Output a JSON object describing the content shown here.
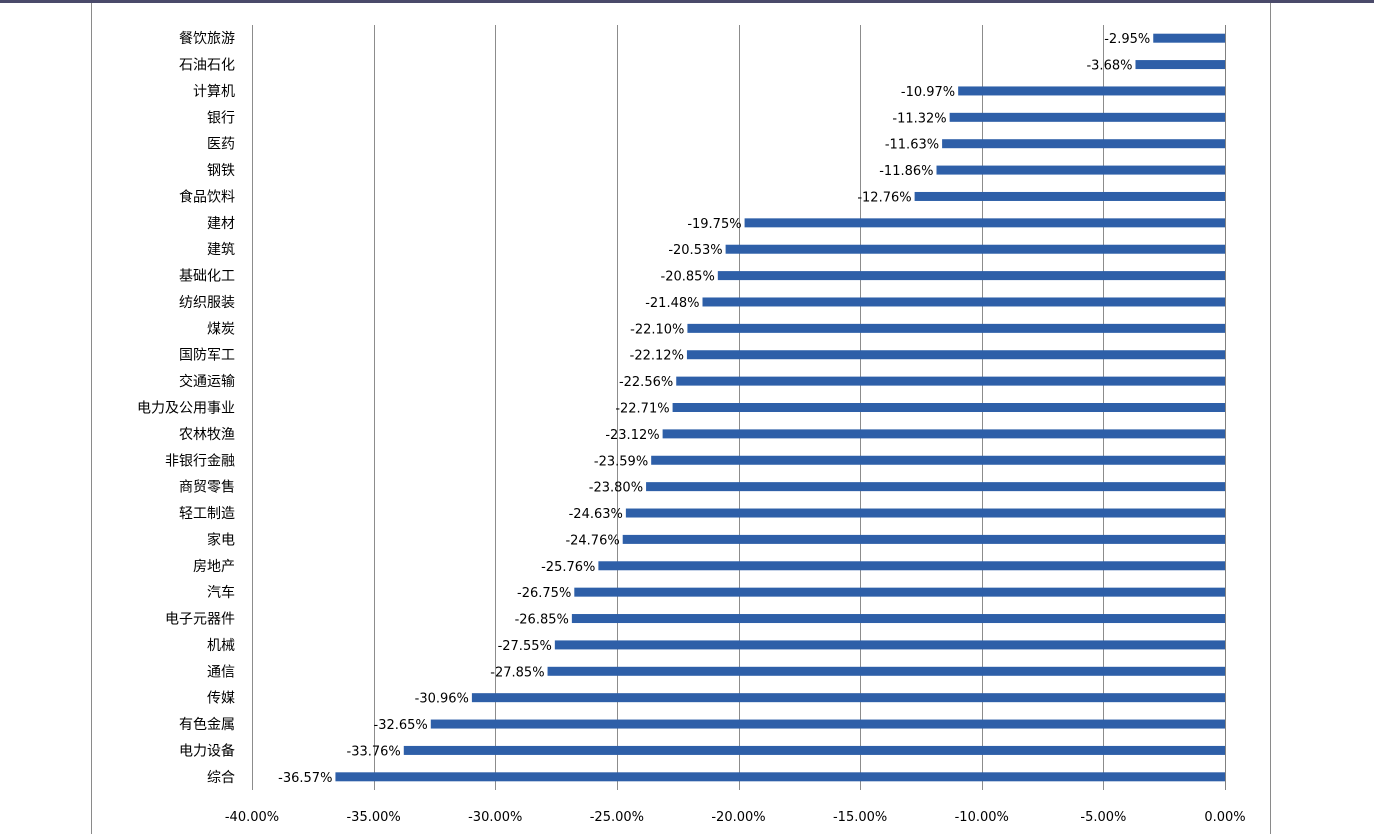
{
  "chart_data": {
    "type": "bar",
    "orientation": "horizontal",
    "title": "",
    "xlabel": "",
    "ylabel": "",
    "xlim": [
      -40,
      0
    ],
    "grid": "vertical",
    "legend": "none",
    "bar_color": "#2E5FA8",
    "categories": [
      "餐饮旅游",
      "石油石化",
      "计算机",
      "银行",
      "医药",
      "钢铁",
      "食品饮料",
      "建材",
      "建筑",
      "基础化工",
      "纺织服装",
      "煤炭",
      "国防军工",
      "交通运输",
      "电力及公用事业",
      "农林牧渔",
      "非银行金融",
      "商贸零售",
      "轻工制造",
      "家电",
      "房地产",
      "汽车",
      "电子元器件",
      "机械",
      "通信",
      "传媒",
      "有色金属",
      "电力设备",
      "综合"
    ],
    "values": [
      -2.95,
      -3.68,
      -10.97,
      -11.32,
      -11.63,
      -11.86,
      -12.76,
      -19.75,
      -20.53,
      -20.85,
      -21.48,
      -22.1,
      -22.12,
      -22.56,
      -22.71,
      -23.12,
      -23.59,
      -23.8,
      -24.63,
      -24.76,
      -25.76,
      -26.75,
      -26.85,
      -27.55,
      -27.85,
      -30.96,
      -32.65,
      -33.76,
      -36.57
    ],
    "value_labels": [
      "-2.95%",
      "-3.68%",
      "-10.97%",
      "-11.32%",
      "-11.63%",
      "-11.86%",
      "-12.76%",
      "-19.75%",
      "-20.53%",
      "-20.85%",
      "-21.48%",
      "-22.10%",
      "-22.12%",
      "-22.56%",
      "-22.71%",
      "-23.12%",
      "-23.59%",
      "-23.80%",
      "-24.63%",
      "-24.76%",
      "-25.76%",
      "-26.75%",
      "-26.85%",
      "-27.55%",
      "-27.85%",
      "-30.96%",
      "-32.65%",
      "-33.76%",
      "-36.57%"
    ],
    "x_ticks": [
      -40,
      -35,
      -30,
      -25,
      -20,
      -15,
      -10,
      -5,
      0
    ],
    "x_tick_labels": [
      "-40.00%",
      "-35.00%",
      "-30.00%",
      "-25.00%",
      "-20.00%",
      "-15.00%",
      "-10.00%",
      "-5.00%",
      "0.00%"
    ]
  }
}
